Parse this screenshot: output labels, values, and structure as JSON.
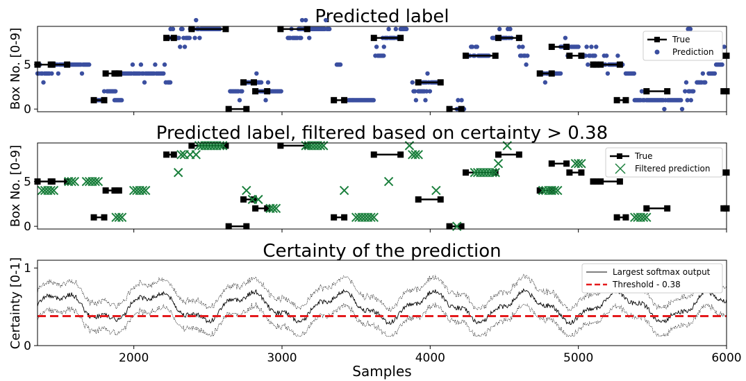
{
  "chart_data": [
    {
      "type": "scatter",
      "title": "Predicted label",
      "ylabel": "Box No. [0-9]",
      "xlim": [
        1350,
        6000
      ],
      "ylim": [
        -0.3,
        9.3
      ],
      "yticks": [
        0,
        5
      ],
      "legend": {
        "placement": "top-right",
        "entries": [
          "True",
          "Prediction"
        ]
      },
      "series": [
        {
          "name": "True",
          "segments": [
            [
              1350,
              1450,
              5
            ],
            [
              1440,
              1550,
              5
            ],
            [
              1730,
              1800,
              1
            ],
            [
              1810,
              1870,
              4
            ],
            [
              1880,
              1900,
              4
            ],
            [
              2220,
              2270,
              8
            ],
            [
              2390,
              2620,
              9
            ],
            [
              2640,
              2760,
              0
            ],
            [
              2740,
              2810,
              3
            ],
            [
              2820,
              2900,
              2
            ],
            [
              2990,
              3170,
              9
            ],
            [
              3350,
              3420,
              1
            ],
            [
              3620,
              3800,
              8
            ],
            [
              3920,
              4070,
              3
            ],
            [
              4130,
              4210,
              0
            ],
            [
              4240,
              4440,
              6
            ],
            [
              4460,
              4600,
              8
            ],
            [
              4740,
              4820,
              4
            ],
            [
              4820,
              4920,
              7
            ],
            [
              4940,
              5020,
              6
            ],
            [
              5100,
              5120,
              5
            ],
            [
              5150,
              5280,
              5
            ],
            [
              5260,
              5320,
              1
            ],
            [
              5460,
              5600,
              2
            ],
            [
              5980,
              6000,
              2
            ],
            [
              5960,
              6000,
              6
            ]
          ],
          "color": "#000000",
          "marker": "square"
        },
        {
          "name": "Prediction",
          "color": "#3b4fa0",
          "marker": "circle",
          "clusters": [
            [
              1350,
              1450,
              4
            ],
            [
              1450,
              1700,
              5
            ],
            [
              1760,
              1800,
              1
            ],
            [
              1820,
              1880,
              2
            ],
            [
              1870,
              1920,
              1
            ],
            [
              1920,
              2000,
              4
            ],
            [
              2000,
              2220,
              4
            ],
            [
              2230,
              2250,
              3
            ],
            [
              2240,
              2380,
              8
            ],
            [
              2380,
              2580,
              9
            ],
            [
              2650,
              2730,
              2
            ],
            [
              2760,
              2800,
              3
            ],
            [
              2820,
              2860,
              3
            ],
            [
              2850,
              3000,
              2
            ],
            [
              3040,
              3130,
              8
            ],
            [
              3120,
              3320,
              9
            ],
            [
              3370,
              3400,
              5
            ],
            [
              3450,
              3620,
              1
            ],
            [
              3630,
              3690,
              6
            ],
            [
              3680,
              3800,
              8
            ],
            [
              3800,
              3840,
              9
            ],
            [
              3880,
              3980,
              2
            ],
            [
              3950,
              4050,
              3
            ],
            [
              4180,
              4230,
              0
            ],
            [
              4260,
              4400,
              6
            ],
            [
              4420,
              4550,
              8
            ],
            [
              4600,
              4660,
              6
            ],
            [
              4760,
              4880,
              4
            ],
            [
              4880,
              5000,
              7
            ],
            [
              5040,
              5120,
              6
            ],
            [
              5150,
              5240,
              5
            ],
            [
              5250,
              5300,
              5
            ],
            [
              5320,
              5380,
              4
            ],
            [
              5380,
              5450,
              1
            ],
            [
              5460,
              5700,
              1
            ],
            [
              5720,
              5780,
              2
            ],
            [
              5740,
              5760,
              9
            ],
            [
              5800,
              5860,
              3
            ],
            [
              5880,
              5920,
              4
            ],
            [
              5930,
              5970,
              5
            ],
            [
              5960,
              6000,
              6
            ]
          ]
        }
      ]
    },
    {
      "type": "scatter",
      "title": "Predicted label, filtered based on certainty > 0.38",
      "ylabel": "Box No. [0-9]",
      "xlim": [
        1350,
        6000
      ],
      "ylim": [
        -0.3,
        9.3
      ],
      "yticks": [
        0,
        5
      ],
      "legend": {
        "placement": "top-right",
        "entries": [
          "True",
          "Filtered prediction"
        ]
      },
      "series": [
        {
          "name": "True",
          "color": "#000000",
          "marker": "square",
          "ref": "true-segments"
        },
        {
          "name": "Filtered prediction",
          "color": "#1a7f3c",
          "marker": "x",
          "points": [
            [
              1380,
              4
            ],
            [
              1400,
              4
            ],
            [
              1420,
              4
            ],
            [
              1440,
              4
            ],
            [
              1460,
              4
            ],
            [
              1560,
              5
            ],
            [
              1580,
              5
            ],
            [
              1600,
              5
            ],
            [
              1680,
              5
            ],
            [
              1700,
              5
            ],
            [
              1720,
              5
            ],
            [
              1740,
              5
            ],
            [
              1760,
              5
            ],
            [
              1880,
              1
            ],
            [
              1900,
              1
            ],
            [
              1920,
              1
            ],
            [
              2000,
              4
            ],
            [
              2020,
              4
            ],
            [
              2040,
              4
            ],
            [
              2060,
              4
            ],
            [
              2080,
              4
            ],
            [
              2300,
              6
            ],
            [
              2320,
              8
            ],
            [
              2340,
              8
            ],
            [
              2380,
              8
            ],
            [
              2420,
              8
            ],
            [
              2440,
              9
            ],
            [
              2460,
              9
            ],
            [
              2480,
              9
            ],
            [
              2500,
              9
            ],
            [
              2520,
              9
            ],
            [
              2540,
              9
            ],
            [
              2560,
              9
            ],
            [
              2580,
              9
            ],
            [
              2600,
              9
            ],
            [
              2760,
              4
            ],
            [
              2800,
              3
            ],
            [
              2840,
              3
            ],
            [
              2920,
              2
            ],
            [
              2940,
              2
            ],
            [
              2960,
              2
            ],
            [
              3160,
              9
            ],
            [
              3180,
              9
            ],
            [
              3200,
              9
            ],
            [
              3220,
              9
            ],
            [
              3240,
              9
            ],
            [
              3260,
              9
            ],
            [
              3280,
              9
            ],
            [
              3420,
              4
            ],
            [
              3500,
              1
            ],
            [
              3520,
              1
            ],
            [
              3540,
              1
            ],
            [
              3560,
              1
            ],
            [
              3580,
              1
            ],
            [
              3600,
              1
            ],
            [
              3620,
              1
            ],
            [
              3720,
              5
            ],
            [
              3860,
              9
            ],
            [
              3880,
              8
            ],
            [
              3900,
              8
            ],
            [
              3920,
              8
            ],
            [
              4040,
              4
            ],
            [
              4180,
              0
            ],
            [
              4300,
              6
            ],
            [
              4320,
              6
            ],
            [
              4340,
              6
            ],
            [
              4360,
              6
            ],
            [
              4380,
              6
            ],
            [
              4400,
              6
            ],
            [
              4420,
              6
            ],
            [
              4440,
              6
            ],
            [
              4460,
              7
            ],
            [
              4520,
              9
            ],
            [
              4760,
              4
            ],
            [
              4780,
              4
            ],
            [
              4800,
              4
            ],
            [
              4820,
              4
            ],
            [
              4840,
              4
            ],
            [
              4860,
              4
            ],
            [
              4980,
              7
            ],
            [
              5000,
              7
            ],
            [
              5020,
              7
            ],
            [
              5380,
              1
            ],
            [
              5400,
              1
            ],
            [
              5420,
              1
            ],
            [
              5440,
              1
            ],
            [
              5460,
              1
            ]
          ]
        }
      ]
    },
    {
      "type": "line",
      "title": "Certainty of the prediction",
      "ylabel": "Certainty [0-1]",
      "xlabel": "Samples",
      "xlim": [
        1350,
        6000
      ],
      "ylim": [
        0,
        1.1
      ],
      "xticks": [
        2000,
        3000,
        4000,
        5000,
        6000
      ],
      "yticks": [
        0,
        1
      ],
      "legend": {
        "placement": "top-right",
        "entries": [
          "Largest softmax output",
          "Threshold - 0.38"
        ]
      },
      "series": [
        {
          "name": "Largest softmax output",
          "color": "#000000",
          "style": "solid"
        },
        {
          "name": "Threshold - 0.38",
          "color": "#e41a1c",
          "style": "dashed",
          "y": 0.38
        }
      ]
    }
  ]
}
